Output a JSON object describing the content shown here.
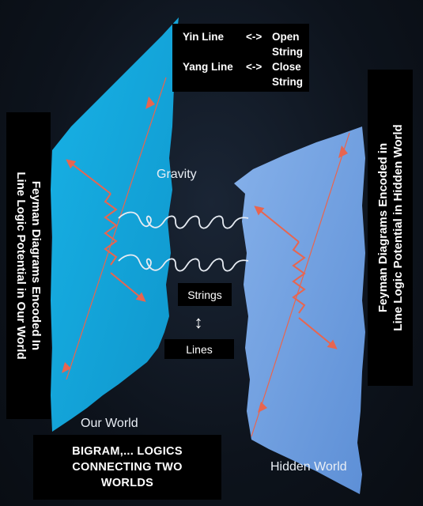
{
  "legend": {
    "yin_label": "Yin Line",
    "yin_arrow": "<->",
    "yin_value_1": "Open",
    "yin_value_2": "String",
    "yang_label": "Yang Line",
    "yang_arrow": "<->",
    "yang_value_1": "Close",
    "yang_value_2": "String"
  },
  "left_caption": {
    "line1": "Feyman Diagrams Encoded In",
    "line2": "Line Logic Potential in Our World"
  },
  "right_caption": {
    "line1": "Feyman Diagrams Encoded in",
    "line2": "Line Logic Potential in Hidden World"
  },
  "gravity_label": "Gravity",
  "strings_label": "Strings",
  "updown_glyph": "↕",
  "lines_label": "Lines",
  "our_world_label": "Our World",
  "hidden_world_label": "Hidden World",
  "bigram": {
    "line1": "BIGRAM,... LOGICS",
    "line2": "CONNECTING TWO",
    "line3": "WORLDS"
  },
  "colors": {
    "our_world_fill": "#14a9dd",
    "hidden_world_fill": "#6f9fe0",
    "feynman_line": "#e8654f",
    "string_coil": "#e6ebf2"
  }
}
